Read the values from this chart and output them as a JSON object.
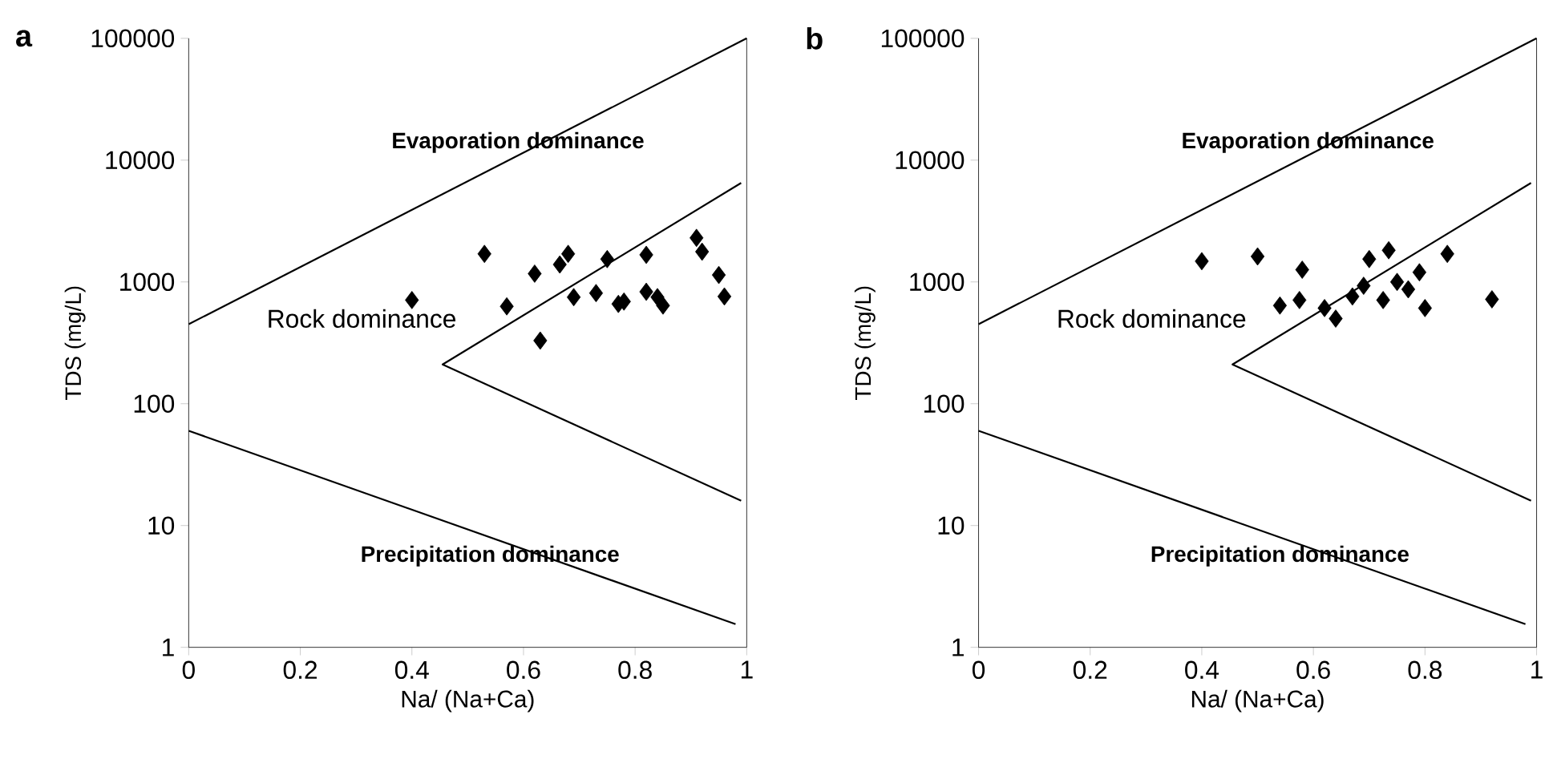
{
  "chart_data": [
    {
      "type": "scatter",
      "title": "a",
      "xlabel": "Na/ (Na+Ca)",
      "ylabel": "TDS (mg/L)",
      "log": "y",
      "grid": false,
      "xlim": [
        0,
        1
      ],
      "ylim": [
        1,
        100000
      ],
      "xticks": [
        0,
        0.2,
        0.4,
        0.6,
        0.8,
        1
      ],
      "yticks": [
        1,
        10,
        100,
        1000,
        10000,
        100000
      ],
      "series": [
        {
          "marker": "diamond",
          "color": "#000000",
          "x": [
            0.4,
            0.53,
            0.57,
            0.63,
            0.62,
            0.665,
            0.68,
            0.69,
            0.73,
            0.75,
            0.77,
            0.78,
            0.82,
            0.82,
            0.84,
            0.85,
            0.91,
            0.92,
            0.95,
            0.96
          ],
          "values": [
            710,
            1700,
            630,
            330,
            1170,
            1390,
            1700,
            750,
            810,
            1540,
            660,
            690,
            1670,
            830,
            750,
            640,
            2300,
            1770,
            1140,
            760
          ]
        },
        {
          "type": "line",
          "color": "#000000",
          "x": [
            0,
            1
          ],
          "values": [
            450,
            100000
          ]
        },
        {
          "type": "line",
          "color": "#000000",
          "x": [
            0.99,
            0.455,
            0.99
          ],
          "values": [
            6500,
            210,
            16
          ]
        },
        {
          "type": "line",
          "color": "#000000",
          "x": [
            0,
            0.98
          ],
          "values": [
            60,
            1.55
          ]
        }
      ],
      "annotations": [
        "Evaporation dominance",
        "Rock dominance",
        "Precipitation dominance"
      ]
    },
    {
      "type": "scatter",
      "title": "b",
      "xlabel": "Na/ (Na+Ca)",
      "ylabel": "TDS (mg/L)",
      "log": "y",
      "grid": false,
      "xlim": [
        0,
        1
      ],
      "ylim": [
        1,
        100000
      ],
      "xticks": [
        0,
        0.2,
        0.4,
        0.6,
        0.8,
        1
      ],
      "yticks": [
        1,
        10,
        100,
        1000,
        10000,
        100000
      ],
      "series": [
        {
          "marker": "diamond",
          "color": "#000000",
          "x": [
            0.4,
            0.5,
            0.58,
            0.54,
            0.575,
            0.62,
            0.64,
            0.67,
            0.69,
            0.7,
            0.735,
            0.725,
            0.75,
            0.77,
            0.79,
            0.8,
            0.84,
            0.92
          ],
          "values": [
            1480,
            1620,
            1260,
            640,
            710,
            610,
            500,
            760,
            930,
            1540,
            1820,
            710,
            1000,
            870,
            1200,
            610,
            1700,
            720
          ]
        },
        {
          "type": "line",
          "color": "#000000",
          "x": [
            0,
            1
          ],
          "values": [
            450,
            100000
          ]
        },
        {
          "type": "line",
          "color": "#000000",
          "x": [
            0.99,
            0.455,
            0.99
          ],
          "values": [
            6500,
            210,
            16
          ]
        },
        {
          "type": "line",
          "color": "#000000",
          "x": [
            0,
            0.98
          ],
          "values": [
            60,
            1.55
          ]
        }
      ],
      "annotations": [
        "Evaporation dominance",
        "Rock dominance",
        "Precipitation dominance"
      ]
    }
  ]
}
